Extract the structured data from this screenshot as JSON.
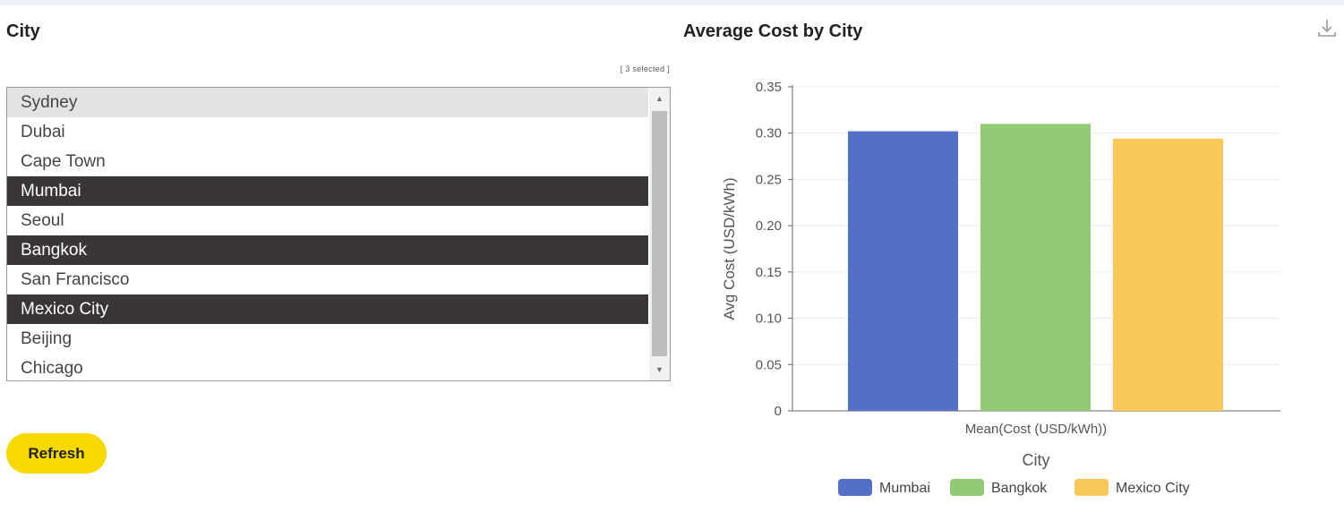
{
  "city_panel": {
    "title": "City",
    "selected_count": "[ 3 selected ]",
    "items": [
      {
        "label": "Sydney",
        "state": "hover"
      },
      {
        "label": "Dubai",
        "state": "normal"
      },
      {
        "label": "Cape Town",
        "state": "normal"
      },
      {
        "label": "Mumbai",
        "state": "selected"
      },
      {
        "label": "Seoul",
        "state": "normal"
      },
      {
        "label": "Bangkok",
        "state": "selected"
      },
      {
        "label": "San Francisco",
        "state": "normal"
      },
      {
        "label": "Mexico City",
        "state": "selected"
      },
      {
        "label": "Beijing",
        "state": "normal"
      },
      {
        "label": "Chicago",
        "state": "normal"
      }
    ],
    "refresh_label": "Refresh"
  },
  "chart_panel": {
    "title": "Average Cost by City",
    "download_icon": "download-icon"
  },
  "chart_data": {
    "type": "bar",
    "title": "Average Cost by City",
    "categories": [
      "Mean(Cost (USD/kWh))"
    ],
    "xlabel": "City",
    "ylabel": "Avg Cost (USD/kWh)",
    "ylim": [
      0,
      0.35
    ],
    "yticks": [
      "0",
      "0.05",
      "0.10",
      "0.15",
      "0.20",
      "0.25",
      "0.30",
      "0.35"
    ],
    "grid": true,
    "legend_position": "bottom",
    "series": [
      {
        "name": "Mumbai",
        "values": [
          0.302
        ],
        "color": "#5470c6"
      },
      {
        "name": "Bangkok",
        "values": [
          0.31
        ],
        "color": "#91cc75"
      },
      {
        "name": "Mexico City",
        "values": [
          0.294
        ],
        "color": "#f9c859"
      }
    ]
  }
}
